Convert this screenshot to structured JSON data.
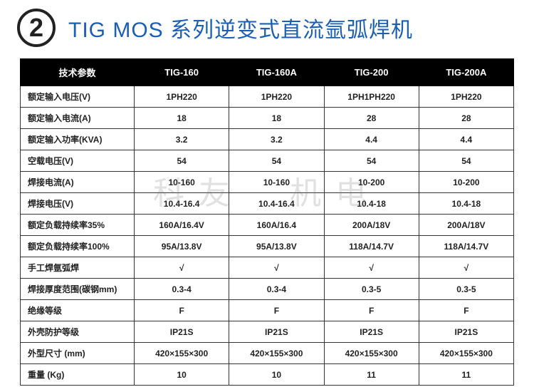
{
  "badge_number": "2",
  "title": "TIG MOS 系列逆变式直流氩弧焊机",
  "watermark": "科友　机电",
  "table": {
    "columns": [
      "技术参数",
      "TIG-160",
      "TIG-160A",
      "TIG-200",
      "TIG-200A"
    ],
    "rows": [
      [
        "额定输入电压(V)",
        "1PH220",
        "1PH220",
        "1PH1PH220",
        "1PH220"
      ],
      [
        "额定输入电流(A)",
        "18",
        "18",
        "28",
        "28"
      ],
      [
        "额定输入功率(KVA)",
        "3.2",
        "3.2",
        "4.4",
        "4.4"
      ],
      [
        "空载电压(V)",
        "54",
        "54",
        "54",
        "54"
      ],
      [
        "焊接电流(A)",
        "10-160",
        "10-160",
        "10-200",
        "10-200"
      ],
      [
        "焊接电压(V)",
        "10.4-16.4",
        "10.4-16.4",
        "10.4-18",
        "10.4-18"
      ],
      [
        "额定负载持续率35%",
        "160A/16.4V",
        "160A/16.4",
        "200A/18V",
        "200A/18V"
      ],
      [
        "额定负载持续率100%",
        "95A/13.8V",
        "95A/13.8V",
        "118A/14.7V",
        "118A/14.7V"
      ],
      [
        "手工焊氩弧焊",
        "√",
        "√",
        "√",
        "√"
      ],
      [
        "焊接厚度范围(碳钢mm)",
        "0.3-4",
        "0.3-4",
        "0.3-5",
        "0.3-5"
      ],
      [
        "绝缘等级",
        "F",
        "F",
        "F",
        "F"
      ],
      [
        "外壳防护等级",
        "IP21S",
        "IP21S",
        "IP21S",
        "IP21S"
      ],
      [
        "外型尺寸 (mm)",
        "420×155×300",
        "420×155×300",
        "420×155×300",
        "420×155×300"
      ],
      [
        "重量 (Kg)",
        "10",
        "10",
        "11",
        "11"
      ]
    ]
  },
  "colors": {
    "title_color": "#1a5fb4",
    "header_bg": "#000000",
    "header_fg": "#ffffff",
    "border": "#333333",
    "text": "#222222"
  }
}
